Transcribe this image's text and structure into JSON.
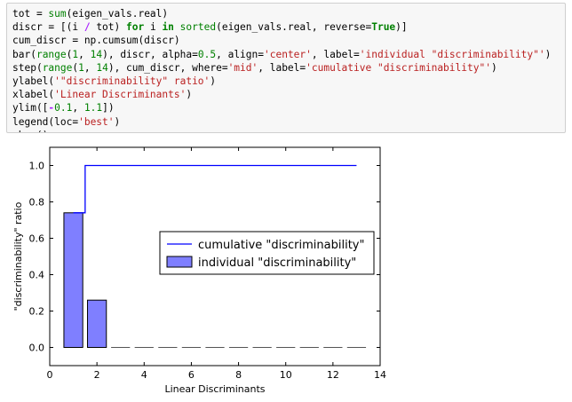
{
  "code_cell": {
    "lines": [
      [
        {
          "t": "tot = "
        },
        {
          "t": "sum",
          "c": "bi"
        },
        {
          "t": "(eigen_vals.real)"
        }
      ],
      [
        {
          "t": "discr = [(i "
        },
        {
          "t": "/",
          "c": "op"
        },
        {
          "t": " tot) "
        },
        {
          "t": "for",
          "c": "kw"
        },
        {
          "t": " i "
        },
        {
          "t": "in",
          "c": "kw"
        },
        {
          "t": " "
        },
        {
          "t": "sorted",
          "c": "bi"
        },
        {
          "t": "(eigen_vals.real, reverse="
        },
        {
          "t": "True",
          "c": "kw"
        },
        {
          "t": ")]"
        }
      ],
      [
        {
          "t": "cum_discr = np.cumsum(discr)"
        }
      ],
      [
        {
          "t": "bar("
        },
        {
          "t": "range",
          "c": "bi"
        },
        {
          "t": "("
        },
        {
          "t": "1",
          "c": "num"
        },
        {
          "t": ", "
        },
        {
          "t": "14",
          "c": "num"
        },
        {
          "t": "), discr, alpha="
        },
        {
          "t": "0.5",
          "c": "num"
        },
        {
          "t": ", align="
        },
        {
          "t": "'center'",
          "c": "str"
        },
        {
          "t": ", label="
        },
        {
          "t": "'individual \"discriminability\"'",
          "c": "str"
        },
        {
          "t": ")"
        }
      ],
      [
        {
          "t": "step("
        },
        {
          "t": "range",
          "c": "bi"
        },
        {
          "t": "("
        },
        {
          "t": "1",
          "c": "num"
        },
        {
          "t": ", "
        },
        {
          "t": "14",
          "c": "num"
        },
        {
          "t": "), cum_discr, where="
        },
        {
          "t": "'mid'",
          "c": "str"
        },
        {
          "t": ", label="
        },
        {
          "t": "'cumulative \"discriminability\"'",
          "c": "str"
        },
        {
          "t": ")"
        }
      ],
      [
        {
          "t": "ylabel("
        },
        {
          "t": "'\"discriminability\" ratio'",
          "c": "str"
        },
        {
          "t": ")"
        }
      ],
      [
        {
          "t": "xlabel("
        },
        {
          "t": "'Linear Discriminants'",
          "c": "str"
        },
        {
          "t": ")"
        }
      ],
      [
        {
          "t": "ylim(["
        },
        {
          "t": "-",
          "c": "op"
        },
        {
          "t": "0.1",
          "c": "num"
        },
        {
          "t": ", "
        },
        {
          "t": "1.1",
          "c": "num"
        },
        {
          "t": "])"
        }
      ],
      [
        {
          "t": "legend(loc="
        },
        {
          "t": "'best'",
          "c": "str"
        },
        {
          "t": ")"
        }
      ],
      [
        {
          "t": "show()"
        }
      ]
    ]
  },
  "chart_data": {
    "type": "bar",
    "x": [
      1,
      2,
      3,
      4,
      5,
      6,
      7,
      8,
      9,
      10,
      11,
      12,
      13
    ],
    "series": [
      {
        "name": "individual \"discriminability\"",
        "kind": "bar",
        "values": [
          0.74,
          0.26,
          0,
          0,
          0,
          0,
          0,
          0,
          0,
          0,
          0,
          0,
          0
        ],
        "color": "#7f7fff"
      },
      {
        "name": "cumulative \"discriminability\"",
        "kind": "step",
        "values": [
          0.74,
          1.0,
          1.0,
          1.0,
          1.0,
          1.0,
          1.0,
          1.0,
          1.0,
          1.0,
          1.0,
          1.0,
          1.0
        ],
        "color": "#0000ff"
      }
    ],
    "xlabel": "Linear Discriminants",
    "ylabel": "\"discriminability\" ratio",
    "xlim": [
      0,
      14
    ],
    "ylim": [
      -0.1,
      1.1
    ],
    "xticks": [
      0,
      2,
      4,
      6,
      8,
      10,
      12,
      14
    ],
    "yticks": [
      0.0,
      0.2,
      0.4,
      0.6,
      0.8,
      1.0
    ],
    "xtick_labels": [
      "0",
      "2",
      "4",
      "6",
      "8",
      "10",
      "12",
      "14"
    ],
    "ytick_labels": [
      "0.0",
      "0.2",
      "0.4",
      "0.6",
      "0.8",
      "1.0"
    ],
    "legend_loc": "center-right",
    "grid": false
  }
}
